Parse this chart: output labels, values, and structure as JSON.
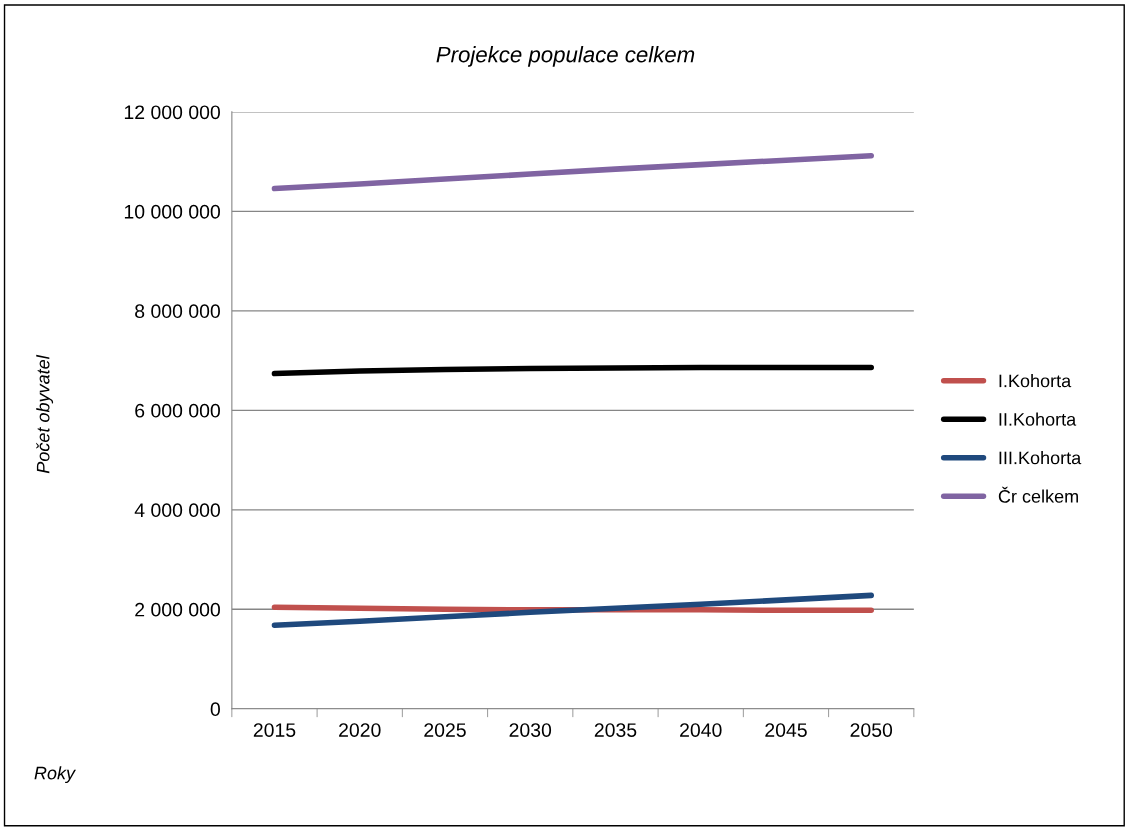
{
  "chart_data": {
    "type": "line",
    "title": "Projekce populace celkem",
    "xlabel": "Roky",
    "ylabel": "Počet obyvatel",
    "categories": [
      "2015",
      "2020",
      "2025",
      "2030",
      "2035",
      "2040",
      "2045",
      "2050"
    ],
    "series": [
      {
        "name": "I.Kohorta",
        "color": "#c0504d",
        "values": [
          2040000,
          2020000,
          2000000,
          1990000,
          1990000,
          1990000,
          1980000,
          1980000
        ]
      },
      {
        "name": "II.Kohorta",
        "color": "#000000",
        "values": [
          6740000,
          6790000,
          6820000,
          6840000,
          6850000,
          6860000,
          6860000,
          6860000
        ]
      },
      {
        "name": "III.Kohorta",
        "color": "#1f497d",
        "values": [
          1680000,
          1760000,
          1850000,
          1940000,
          2020000,
          2100000,
          2190000,
          2280000
        ]
      },
      {
        "name": "Čr celkem",
        "color": "#8064a2",
        "values": [
          10460000,
          10550000,
          10650000,
          10750000,
          10850000,
          10940000,
          11030000,
          11120000
        ]
      }
    ],
    "ylim": [
      0,
      12000000
    ],
    "yticks": [
      {
        "value": 0,
        "label": "0"
      },
      {
        "value": 2000000,
        "label": "2 000 000"
      },
      {
        "value": 4000000,
        "label": "4 000 000"
      },
      {
        "value": 6000000,
        "label": "6 000 000"
      },
      {
        "value": 8000000,
        "label": "8 000 000"
      },
      {
        "value": 10000000,
        "label": "10 000 000"
      },
      {
        "value": 12000000,
        "label": "12 000 000"
      }
    ],
    "grid": "y",
    "legend": "right",
    "marker": "none",
    "line_style": "solid"
  }
}
